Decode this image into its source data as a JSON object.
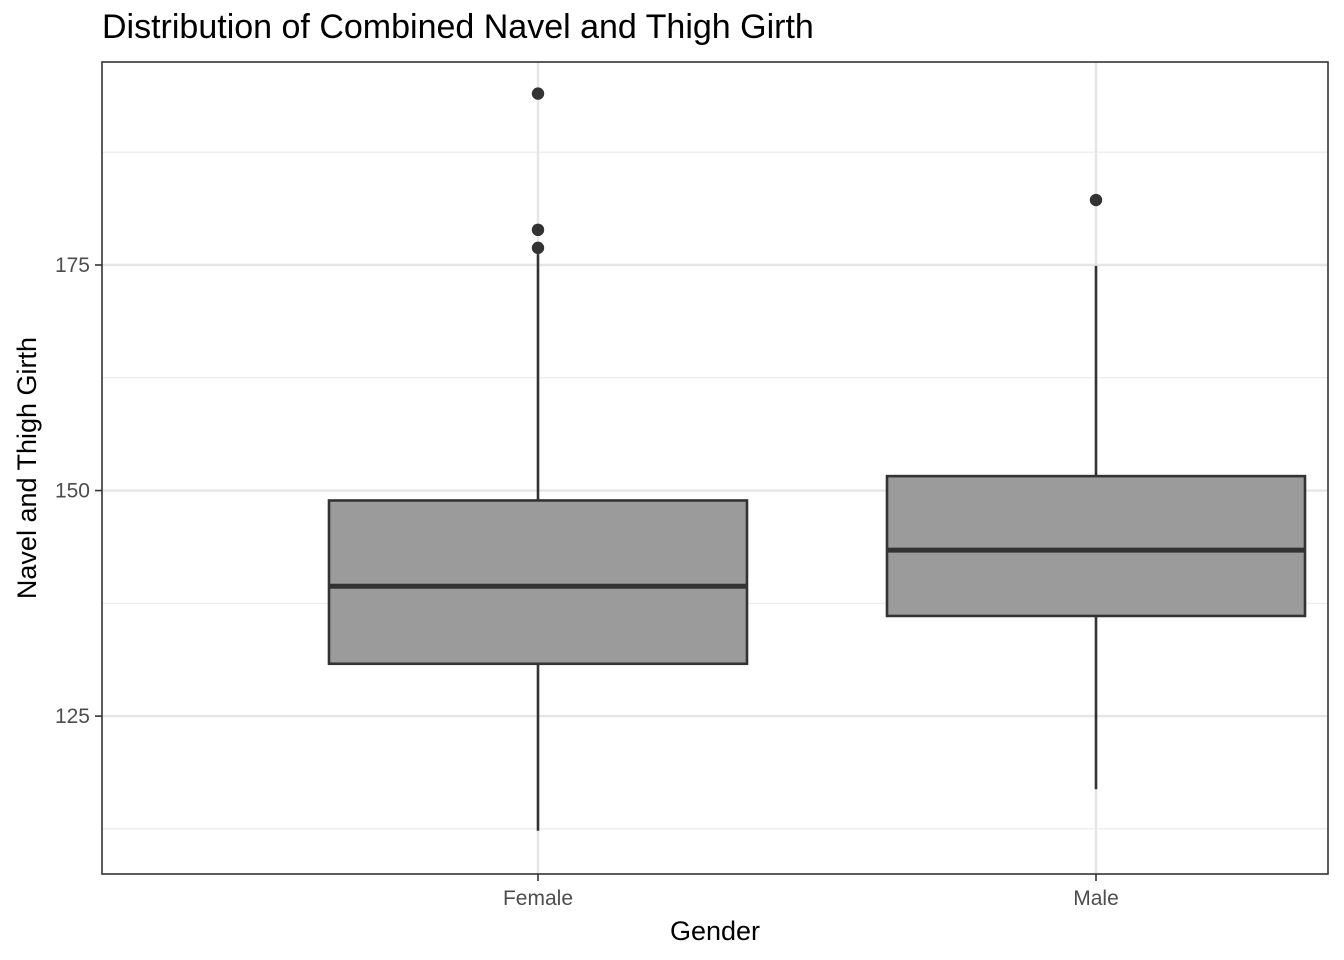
{
  "chart_data": {
    "type": "boxplot",
    "title": "Distribution of Combined Navel and Thigh Girth",
    "xlabel": "Gender",
    "ylabel": "Navel and Thigh Girth",
    "categories": [
      "Female",
      "Male"
    ],
    "ylim": [
      107.5,
      197.5
    ],
    "yticks": [
      125,
      150,
      175
    ],
    "grid": true,
    "boxes": [
      {
        "category": "Female",
        "whisker_low": 112.3,
        "q1": 130.8,
        "median": 139.4,
        "q3": 148.9,
        "whisker_high": 176.2,
        "outliers": [
          176.9,
          178.9,
          194.0
        ]
      },
      {
        "category": "Male",
        "whisker_low": 116.9,
        "q1": 136.1,
        "median": 143.4,
        "q3": 151.6,
        "whisker_high": 174.9,
        "outliers": [
          182.2
        ]
      }
    ],
    "colors": {
      "box_fill": "#9b9b9b",
      "box_stroke": "#333333",
      "grid_major": "#e5e5e5",
      "grid_minor": "#ebebeb",
      "panel_border": "#333333"
    }
  }
}
